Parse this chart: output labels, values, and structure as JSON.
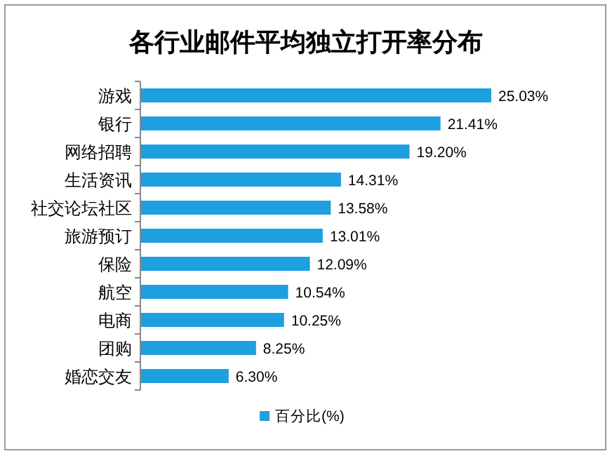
{
  "chart_data": {
    "type": "bar",
    "orientation": "horizontal",
    "title": "各行业邮件平均独立打开率分布",
    "categories": [
      "游戏",
      "银行",
      "网络招聘",
      "生活资讯",
      "社交论坛社区",
      "旅游预订",
      "保险",
      "航空",
      "电商",
      "团购",
      "婚恋交友"
    ],
    "series": [
      {
        "name": "百分比(%)",
        "color": "#1e9fe0",
        "values": [
          25.03,
          21.41,
          19.2,
          14.31,
          13.58,
          13.01,
          12.09,
          10.54,
          10.25,
          8.25,
          6.3
        ],
        "value_labels": [
          "25.03%",
          "21.41%",
          "19.20%",
          "14.31%",
          "13.58%",
          "13.01%",
          "12.09%",
          "10.54%",
          "10.25%",
          "8.25%",
          "6.30%"
        ]
      }
    ],
    "legend": "bottom"
  }
}
